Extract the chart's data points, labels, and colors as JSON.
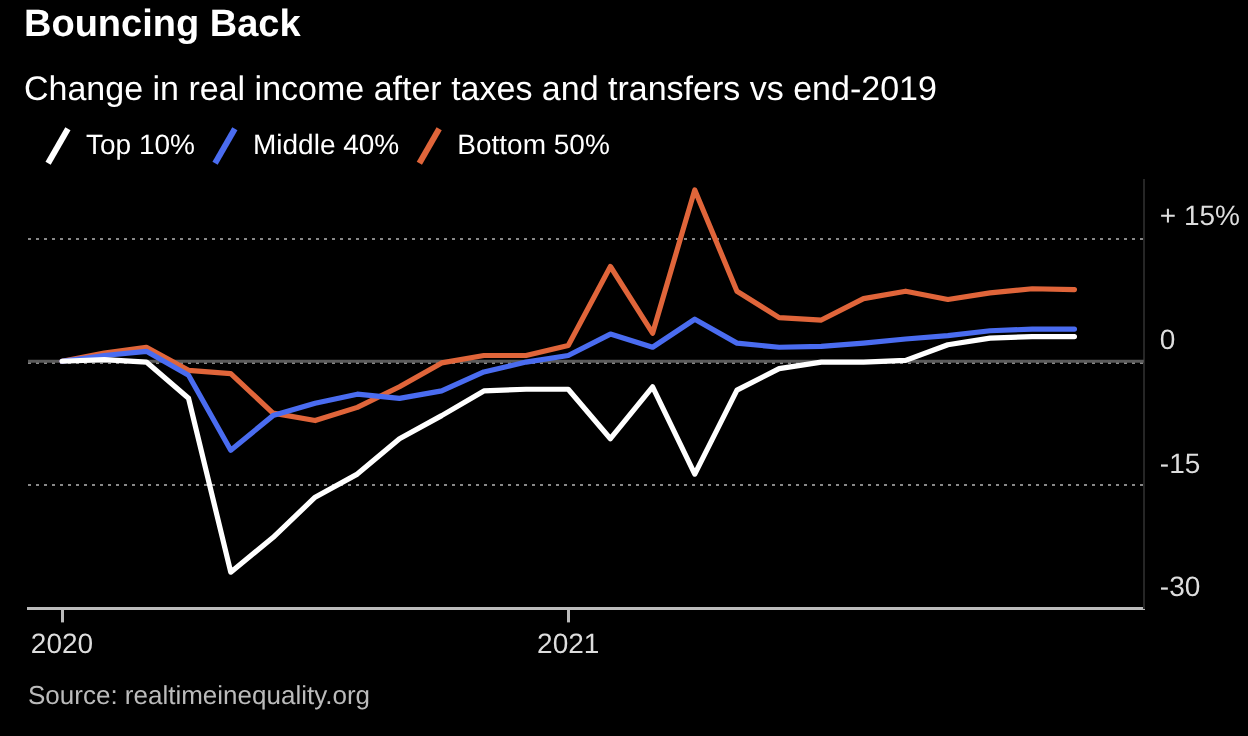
{
  "chart_data": {
    "type": "line",
    "title": "Bouncing Back",
    "subtitle": "Change in real income after taxes and transfers vs end-2019",
    "x": [
      "2020-01",
      "2020-02",
      "2020-03",
      "2020-04",
      "2020-05",
      "2020-06",
      "2020-07",
      "2020-08",
      "2020-09",
      "2020-10",
      "2020-11",
      "2020-12",
      "2021-01",
      "2021-02",
      "2021-03",
      "2021-04",
      "2021-05",
      "2021-06",
      "2021-07",
      "2021-08",
      "2021-09",
      "2021-10",
      "2021-11",
      "2021-12",
      "2022-01"
    ],
    "series": [
      {
        "name": "Top 10%",
        "color": "#ffffff",
        "values": [
          0,
          0.2,
          -0.1,
          -4.5,
          -25.6,
          -21.4,
          -16.5,
          -13.7,
          -9.4,
          -6.6,
          -3.6,
          -3.4,
          -3.4,
          -9.4,
          -3.1,
          -13.7,
          -3.5,
          -0.9,
          -0.1,
          -0.1,
          0.1,
          2.0,
          2.8,
          3.0,
          3.0
        ]
      },
      {
        "name": "Middle 40%",
        "color": "#4a6cf0",
        "values": [
          0,
          0.7,
          1.2,
          -1.7,
          -10.8,
          -6.6,
          -5.1,
          -4.0,
          -4.5,
          -3.6,
          -1.3,
          -0.1,
          0.7,
          3.3,
          1.7,
          5.1,
          2.2,
          1.7,
          1.8,
          2.2,
          2.7,
          3.1,
          3.7,
          3.9,
          3.9
        ]
      },
      {
        "name": "Bottom 50%",
        "color": "#e0653a",
        "values": [
          0,
          1.0,
          1.7,
          -1.1,
          -1.5,
          -6.3,
          -7.2,
          -5.6,
          -3.1,
          -0.2,
          0.7,
          0.7,
          1.9,
          11.5,
          3.4,
          20.8,
          8.5,
          5.3,
          5.0,
          7.6,
          8.5,
          7.5,
          8.3,
          8.8,
          8.7
        ]
      }
    ],
    "xlim": [
      "2019-12-07",
      "2022-02-21"
    ],
    "xticks": [
      "2020",
      "2021"
    ],
    "ylim": [
      -30,
      22
    ],
    "yticks": [
      -30,
      -15,
      0,
      {
        "value": 15,
        "label": "+ 15%"
      }
    ],
    "ref_lines": [
      {
        "axis": "y",
        "value": 0,
        "color": "#5a5a5a"
      }
    ],
    "grid": "y",
    "legend": "top left",
    "marker": "none",
    "line_style": "solid",
    "annotations": [
      "Source: realtimeinequality.org"
    ]
  }
}
